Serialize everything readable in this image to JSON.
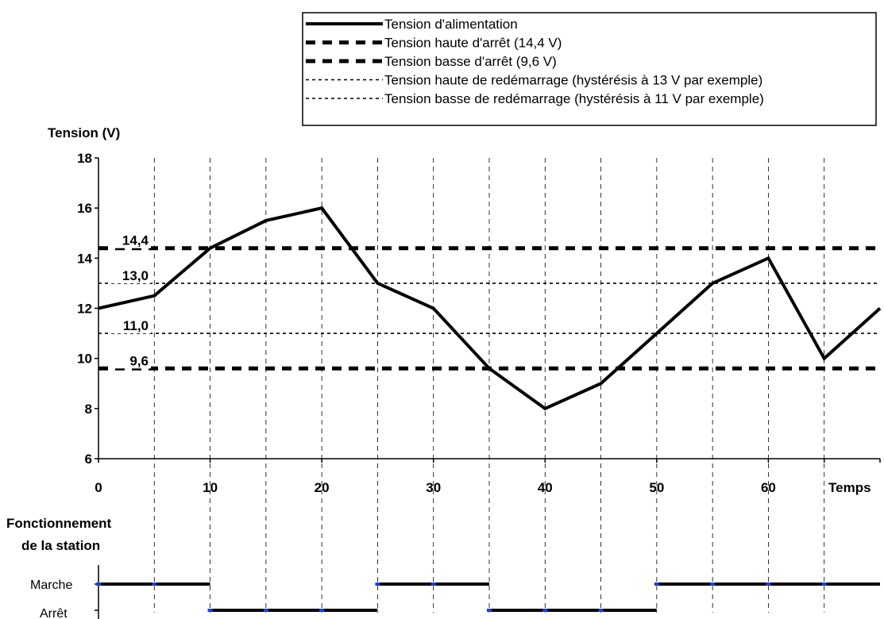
{
  "legend": {
    "items": [
      {
        "label": "Tension d'alimentation",
        "style": "solid"
      },
      {
        "label": "Tension haute d'arrêt (14,4 V)",
        "style": "dashed-thick"
      },
      {
        "label": "Tension basse d'arrêt (9,6 V)",
        "style": "dashed-thick"
      },
      {
        "label": "Tension haute de redémarrage (hystérésis à 13 V par exemple)",
        "style": "dotted"
      },
      {
        "label": "Tension basse de redémarrage (hystérésis à 11 V par exemple)",
        "style": "dotted"
      }
    ]
  },
  "chart_data": {
    "type": "line",
    "ylabel": "Tension (V)",
    "xlabel": "Temps",
    "xlim": [
      0,
      70
    ],
    "ylim": [
      6,
      18
    ],
    "x_ticks": [
      0,
      10,
      20,
      30,
      40,
      50,
      60
    ],
    "x_tick_labels": [
      "0",
      "10",
      "20",
      "30",
      "40",
      "50",
      "60"
    ],
    "y_ticks": [
      6,
      8,
      10,
      12,
      14,
      16,
      18
    ],
    "y_tick_labels": [
      "6",
      "8",
      "10",
      "12",
      "14",
      "16",
      "18"
    ],
    "vertical_gridlines": [
      5,
      10,
      15,
      20,
      25,
      30,
      35,
      40,
      45,
      50,
      55,
      60,
      65
    ],
    "series": [
      {
        "name": "Tension d'alimentation",
        "x": [
          0,
          5,
          10,
          15,
          20,
          25,
          30,
          35,
          40,
          45,
          50,
          55,
          60,
          65,
          70
        ],
        "y": [
          12,
          12.5,
          14.4,
          15.5,
          16,
          13,
          12,
          9.6,
          8,
          9,
          11,
          13,
          14,
          10,
          12
        ]
      }
    ],
    "reference_lines": [
      {
        "value": 14.4,
        "label": "14,4",
        "style": "dashed-thick"
      },
      {
        "value": 13.0,
        "label": "13,0",
        "style": "dotted"
      },
      {
        "value": 11.0,
        "label": "11,0",
        "style": "dotted"
      },
      {
        "value": 9.6,
        "label": "9,6",
        "style": "dashed-thick"
      }
    ],
    "station": {
      "title_line1": "Fonctionnement",
      "title_line2": "de la station",
      "on_label": "Marche",
      "off_label": "Arrêt",
      "segments": [
        {
          "state": "on",
          "start": 0,
          "end": 10
        },
        {
          "state": "off",
          "start": 10,
          "end": 25
        },
        {
          "state": "on",
          "start": 25,
          "end": 35
        },
        {
          "state": "off",
          "start": 35,
          "end": 50
        },
        {
          "state": "on",
          "start": 50,
          "end": 70
        }
      ],
      "marker_color": "#1f3fd6"
    }
  }
}
